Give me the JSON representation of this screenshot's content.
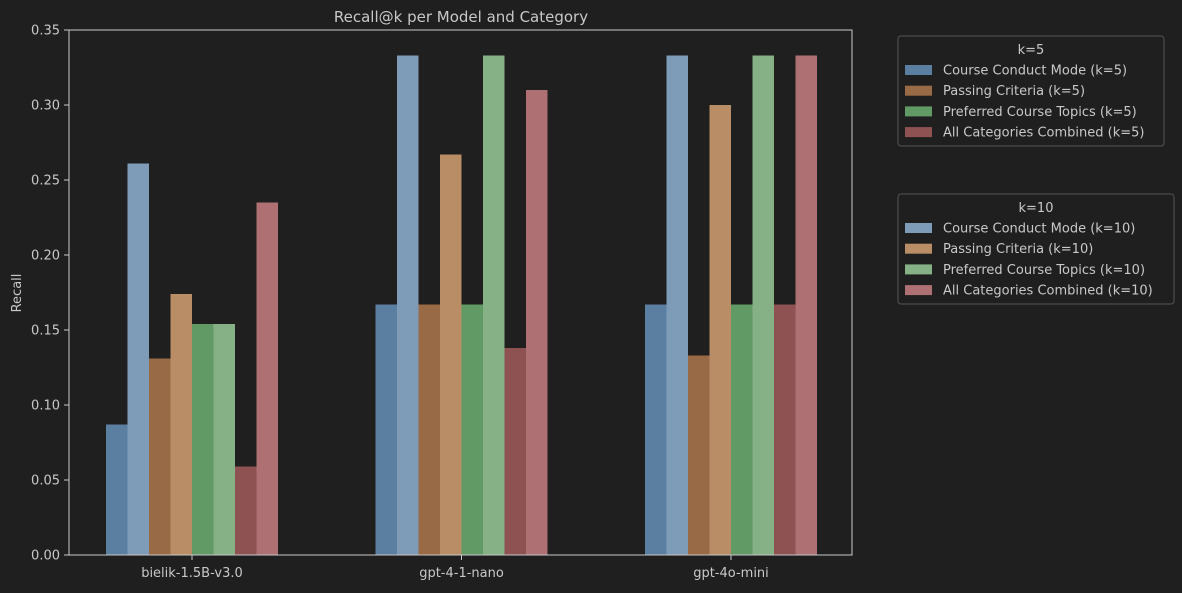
{
  "chart_data": {
    "type": "bar",
    "title": "Recall@k per Model and Category",
    "xlabel": "",
    "ylabel": "Recall",
    "ylim": [
      0,
      0.35
    ],
    "yticks": [
      0.0,
      0.05,
      0.1,
      0.15,
      0.2,
      0.25,
      0.3,
      0.35
    ],
    "ytick_labels": [
      "0.00",
      "0.05",
      "0.10",
      "0.15",
      "0.20",
      "0.25",
      "0.30",
      "0.35"
    ],
    "categories": [
      "bielik-1.5B-v3.0",
      "gpt-4-1-nano",
      "gpt-4o-mini"
    ],
    "grid": false,
    "legend_placement": "outside right",
    "series": [
      {
        "name": "Course Conduct Mode (k=5)",
        "k": "k=5",
        "color": "#5b7fa0",
        "values": [
          0.087,
          0.167,
          0.167
        ]
      },
      {
        "name": "Course Conduct Mode (k=10)",
        "k": "k=10",
        "color": "#7e9bb8",
        "values": [
          0.261,
          0.333,
          0.333
        ]
      },
      {
        "name": "Passing Criteria (k=5)",
        "k": "k=5",
        "color": "#986a45",
        "values": [
          0.131,
          0.167,
          0.133
        ]
      },
      {
        "name": "Passing Criteria (k=10)",
        "k": "k=10",
        "color": "#b98e66",
        "values": [
          0.174,
          0.267,
          0.3
        ]
      },
      {
        "name": "Preferred Course Topics (k=5)",
        "k": "k=5",
        "color": "#619a64",
        "values": [
          0.154,
          0.167,
          0.167
        ]
      },
      {
        "name": "Preferred Course Topics (k=10)",
        "k": "k=10",
        "color": "#86b086",
        "values": [
          0.154,
          0.333,
          0.333
        ]
      },
      {
        "name": "All Categories Combined (k=5)",
        "k": "k=5",
        "color": "#8f5252",
        "values": [
          0.059,
          0.138,
          0.167
        ]
      },
      {
        "name": "All Categories Combined (k=10)",
        "k": "k=10",
        "color": "#ae7072",
        "values": [
          0.235,
          0.31,
          0.333
        ]
      }
    ],
    "legends": [
      {
        "title": "k=5",
        "entries": [
          "Course Conduct Mode (k=5)",
          "Passing Criteria (k=5)",
          "Preferred Course Topics (k=5)",
          "All Categories Combined (k=5)"
        ]
      },
      {
        "title": "k=10",
        "entries": [
          "Course Conduct Mode (k=10)",
          "Passing Criteria (k=10)",
          "Preferred Course Topics (k=10)",
          "All Categories Combined (k=10)"
        ]
      }
    ],
    "colors": {
      "background": "#1f1f1f",
      "text": "#c8c8c8",
      "axis": "#c8c8c8",
      "legend_border": "#555555"
    }
  }
}
